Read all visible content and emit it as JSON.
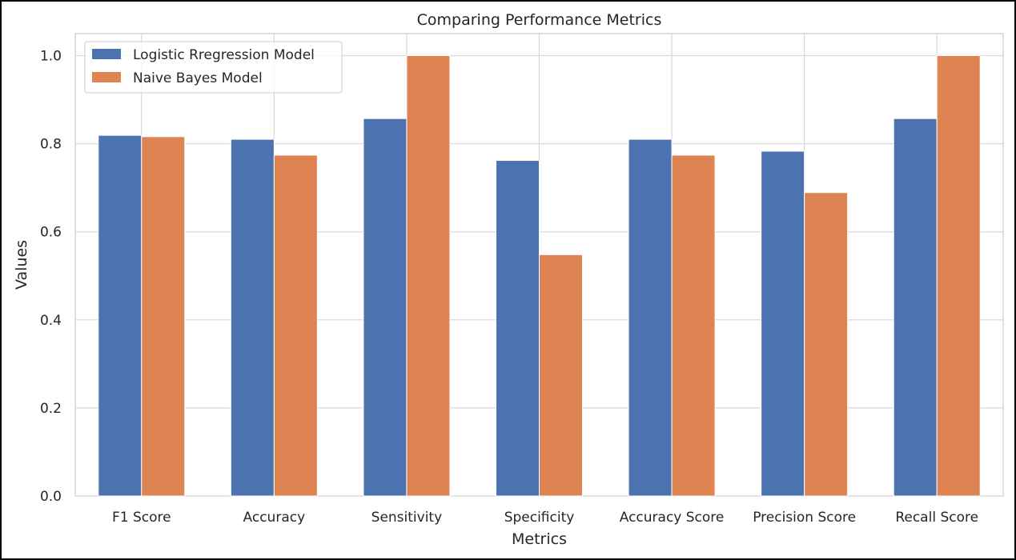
{
  "chart_data": {
    "type": "bar",
    "title": "Comparing Performance Metrics",
    "xlabel": "Metrics",
    "ylabel": "Values",
    "ylim": [
      0,
      1.05
    ],
    "yticks": [
      0.0,
      0.2,
      0.4,
      0.6,
      0.8,
      1.0
    ],
    "ytick_labels": [
      "0.0",
      "0.2",
      "0.4",
      "0.6",
      "0.8",
      "1.0"
    ],
    "grid": true,
    "legend_position": "top-left",
    "categories": [
      "F1 Score",
      "Accuracy",
      "Sensitivity",
      "Specificity",
      "Accuracy Score",
      "Precision Score",
      "Recall Score"
    ],
    "series": [
      {
        "name": "Logistic Rregression Model",
        "color": "#4c72b0",
        "values": [
          0.819,
          0.81,
          0.857,
          0.762,
          0.81,
          0.783,
          0.857
        ]
      },
      {
        "name": "Naive Bayes Model",
        "color": "#dd8452",
        "values": [
          0.816,
          0.774,
          1.0,
          0.548,
          0.774,
          0.689,
          1.0
        ]
      }
    ]
  }
}
